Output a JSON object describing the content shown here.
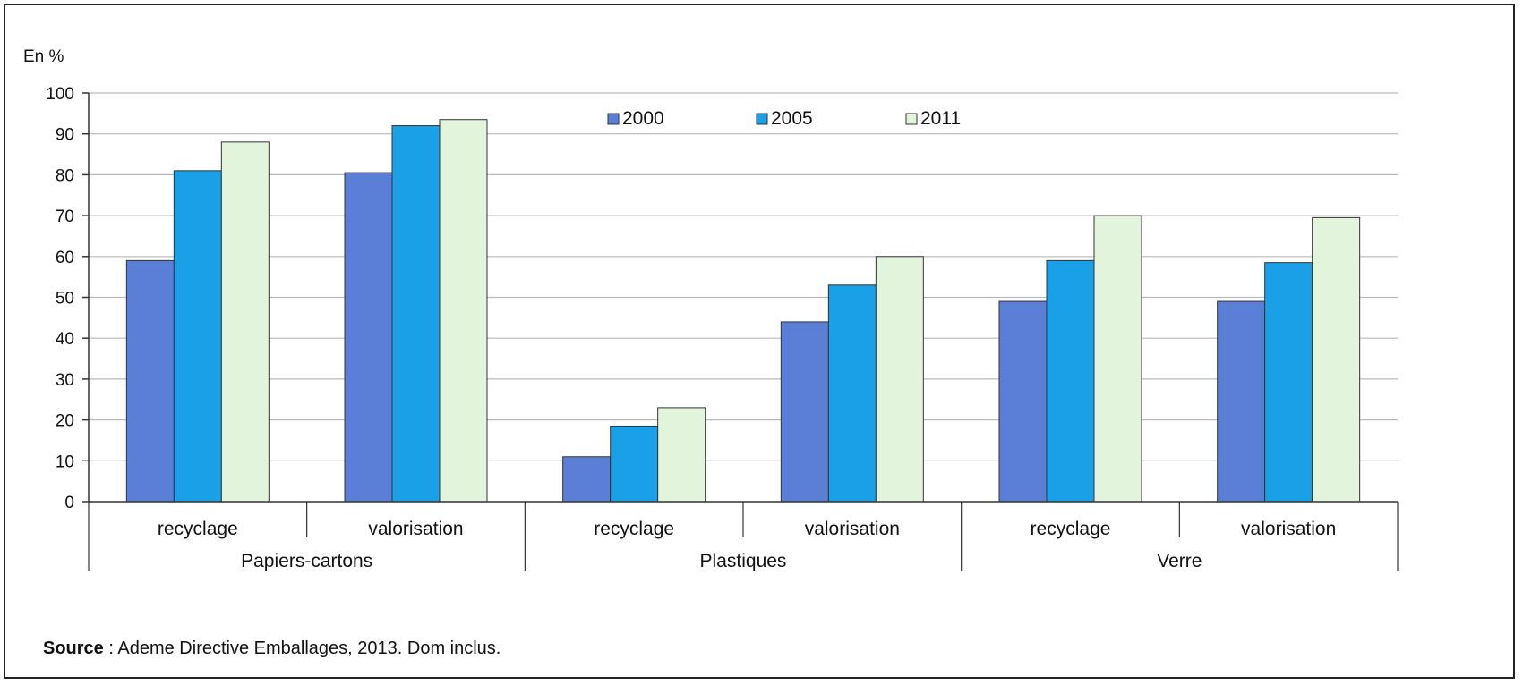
{
  "source": {
    "label": "Source",
    "text": " : Ademe Directive Emballages, 2013. Dom inclus."
  },
  "chart_data": {
    "type": "bar",
    "title": "",
    "ylabel": "En %",
    "xlabel": "",
    "ylim": [
      0,
      100
    ],
    "yticks": [
      0,
      10,
      20,
      30,
      40,
      50,
      60,
      70,
      80,
      90,
      100
    ],
    "grid": true,
    "legend_position": "top-center",
    "categories": [
      "recyclage",
      "valorisation",
      "recyclage",
      "valorisation",
      "recyclage",
      "valorisation"
    ],
    "groups": [
      {
        "label": "Papiers-cartons",
        "span": [
          0,
          1
        ]
      },
      {
        "label": "Plastiques",
        "span": [
          2,
          3
        ]
      },
      {
        "label": "Verre",
        "span": [
          4,
          5
        ]
      }
    ],
    "series": [
      {
        "name": "2000",
        "color": "#5b7fd6",
        "values": [
          59,
          80.5,
          11,
          44,
          49,
          49
        ]
      },
      {
        "name": "2005",
        "color": "#1aa0e6",
        "values": [
          81,
          92,
          18.5,
          53,
          59,
          58.5
        ]
      },
      {
        "name": "2011",
        "color": "#e3f4dc",
        "values": [
          88,
          93.5,
          23,
          60,
          70,
          69.5
        ]
      }
    ]
  }
}
